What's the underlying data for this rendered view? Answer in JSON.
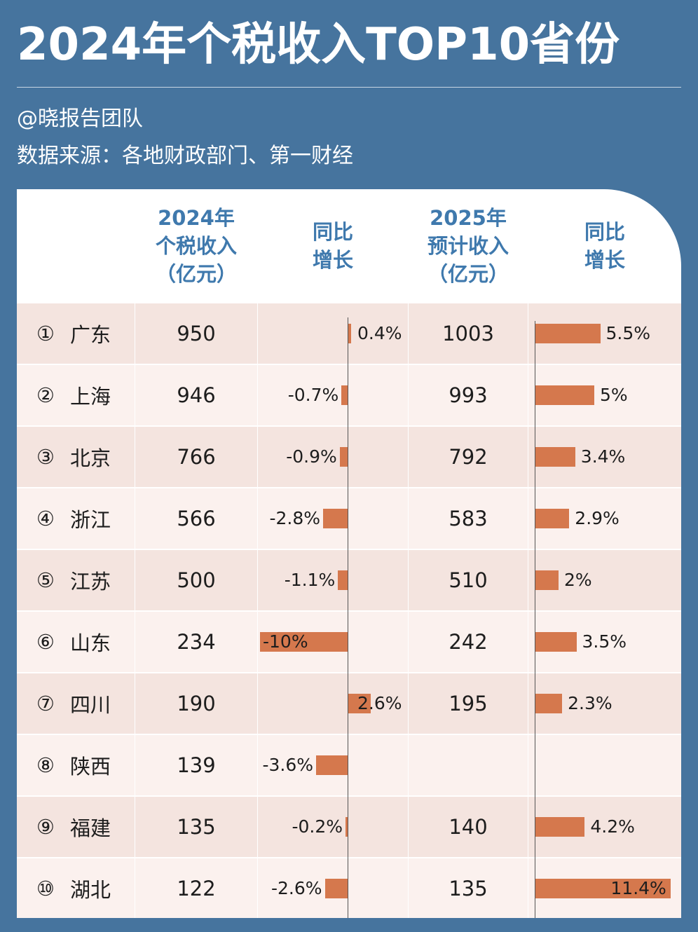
{
  "title": "2024年个税收入TOP10省份",
  "author": "@晓报告团队",
  "source": "数据来源：各地财政部门、第一财经",
  "headers": {
    "col1": "2024年\n个税收入\n（亿元）",
    "col2": "同比\n增长",
    "col3": "2025年\n预计收入\n（亿元）",
    "col4": "同比\n增长"
  },
  "colors": {
    "background": "#46749e",
    "header_text": "#3f79ad",
    "bar": "#d5784d",
    "row_dark": "#f4e4df",
    "row_light": "#fbf1ee"
  },
  "chart_data": {
    "type": "table",
    "columns": [
      "2024年个税收入（亿元）",
      "同比增长",
      "2025年预计收入（亿元）",
      "同比增长"
    ],
    "rows": [
      {
        "rank": "①",
        "province": "广东",
        "tax2024": "950",
        "growth2024": 0.4,
        "growth2024_label": "0.4%",
        "tax2025": "1003",
        "growth2025": 5.5,
        "growth2025_label": "5.5%"
      },
      {
        "rank": "②",
        "province": "上海",
        "tax2024": "946",
        "growth2024": -0.7,
        "growth2024_label": "-0.7%",
        "tax2025": "993",
        "growth2025": 5,
        "growth2025_label": "5%"
      },
      {
        "rank": "③",
        "province": "北京",
        "tax2024": "766",
        "growth2024": -0.9,
        "growth2024_label": "-0.9%",
        "tax2025": "792",
        "growth2025": 3.4,
        "growth2025_label": "3.4%"
      },
      {
        "rank": "④",
        "province": "浙江",
        "tax2024": "566",
        "growth2024": -2.8,
        "growth2024_label": "-2.8%",
        "tax2025": "583",
        "growth2025": 2.9,
        "growth2025_label": "2.9%"
      },
      {
        "rank": "⑤",
        "province": "江苏",
        "tax2024": "500",
        "growth2024": -1.1,
        "growth2024_label": "-1.1%",
        "tax2025": "510",
        "growth2025": 2,
        "growth2025_label": "2%"
      },
      {
        "rank": "⑥",
        "province": "山东",
        "tax2024": "234",
        "growth2024": -10,
        "growth2024_label": "-10%",
        "tax2025": "242",
        "growth2025": 3.5,
        "growth2025_label": "3.5%"
      },
      {
        "rank": "⑦",
        "province": "四川",
        "tax2024": "190",
        "growth2024": 2.6,
        "growth2024_label": "2.6%",
        "tax2025": "195",
        "growth2025": 2.3,
        "growth2025_label": "2.3%"
      },
      {
        "rank": "⑧",
        "province": "陕西",
        "tax2024": "139",
        "growth2024": -3.6,
        "growth2024_label": "-3.6%",
        "tax2025": "",
        "growth2025": null,
        "growth2025_label": ""
      },
      {
        "rank": "⑨",
        "province": "福建",
        "tax2024": "135",
        "growth2024": -0.2,
        "growth2024_label": "-0.2%",
        "tax2025": "140",
        "growth2025": 4.2,
        "growth2025_label": "4.2%"
      },
      {
        "rank": "⑩",
        "province": "湖北",
        "tax2024": "122",
        "growth2024": -2.6,
        "growth2024_label": "-2.6%",
        "tax2025": "135",
        "growth2025": 11.4,
        "growth2025_label": "11.4%"
      }
    ]
  }
}
